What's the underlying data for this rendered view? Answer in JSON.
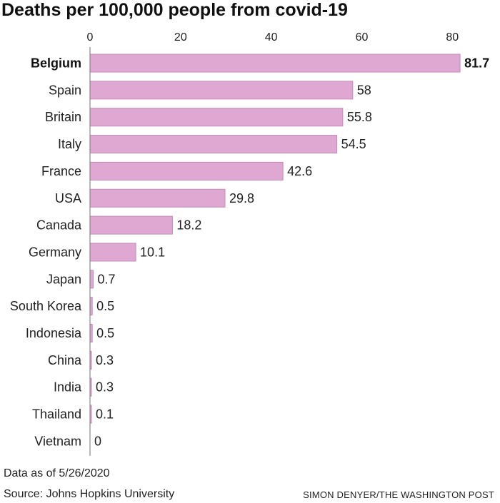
{
  "title": "Deaths per 100,000 people from covid-19",
  "note": "Data as of 5/26/2020",
  "source": "Source: Johns Hopkins University",
  "credit": "SIMON DENYER/THE WASHINGTON POST",
  "colors": {
    "bar_fill": "#dfa8d3",
    "bar_stroke": "#c48ab8",
    "axis": "#888888",
    "text": "#222222"
  },
  "chart_data": {
    "type": "bar",
    "orientation": "horizontal",
    "xlim": [
      0,
      82
    ],
    "ticks": [
      0,
      20,
      40,
      60,
      80
    ],
    "tick_position": "top",
    "highlight": "Belgium",
    "categories": [
      "Belgium",
      "Spain",
      "Britain",
      "Italy",
      "France",
      "USA",
      "Canada",
      "Germany",
      "Japan",
      "South Korea",
      "Indonesia",
      "China",
      "India",
      "Thailand",
      "Vietnam"
    ],
    "values": [
      81.7,
      58,
      55.8,
      54.5,
      42.6,
      29.8,
      18.2,
      10.1,
      0.7,
      0.5,
      0.5,
      0.3,
      0.3,
      0.1,
      0
    ],
    "value_labels": [
      "81.7",
      "58",
      "55.8",
      "54.5",
      "42.6",
      "29.8",
      "18.2",
      "10.1",
      "0.7",
      "0.5",
      "0.5",
      "0.3",
      "0.3",
      "0.1",
      "0"
    ]
  }
}
